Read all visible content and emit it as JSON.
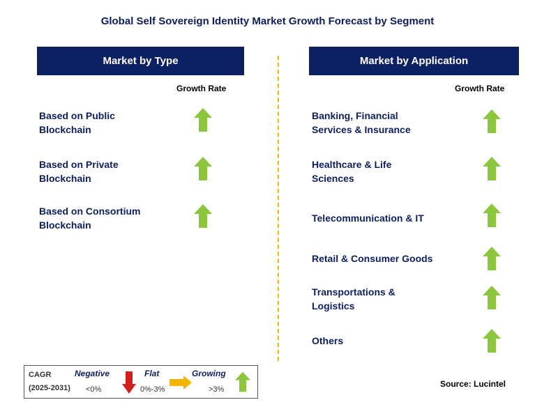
{
  "title": "Global Self Sovereign Identity Market Growth Forecast by Segment",
  "left_panel": {
    "header": "Market by Type",
    "growth_label": "Growth Rate",
    "items": [
      {
        "label_line1": "Based on Public",
        "label_line2": "Blockchain",
        "trend": "growing"
      },
      {
        "label_line1": "Based on Private",
        "label_line2": "Blockchain",
        "trend": "growing"
      },
      {
        "label_line1": "Based on Consortium",
        "label_line2": "Blockchain",
        "trend": "growing"
      }
    ]
  },
  "right_panel": {
    "header": "Market by Application",
    "growth_label": "Growth Rate",
    "items": [
      {
        "label_line1": "Banking, Financial",
        "label_line2": "Services & Insurance",
        "trend": "growing"
      },
      {
        "label_line1": "Healthcare & Life",
        "label_line2": "Sciences",
        "trend": "growing"
      },
      {
        "label_line1": "Telecommunication & IT",
        "label_line2": "",
        "trend": "growing"
      },
      {
        "label_line1": "Retail & Consumer Goods",
        "label_line2": "",
        "trend": "growing"
      },
      {
        "label_line1": "Transportations &",
        "label_line2": "Logistics",
        "trend": "growing"
      },
      {
        "label_line1": "Others",
        "label_line2": "",
        "trend": "growing"
      }
    ]
  },
  "legend": {
    "cagr_label": "CAGR",
    "period": "(2025-2031)",
    "negative": {
      "label": "Negative",
      "range": "<0%"
    },
    "flat": {
      "label": "Flat",
      "range": "0%-3%"
    },
    "growing": {
      "label": "Growing",
      "range": ">3%"
    }
  },
  "source": "Source: Lucintel",
  "colors": {
    "header_bg": "#0d2061",
    "text_navy": "#0d1f5c",
    "up_arrow": "#8cc63f",
    "down_arrow": "#d11f1f",
    "flat_arrow": "#f5b400",
    "divider": "#f5b400"
  }
}
